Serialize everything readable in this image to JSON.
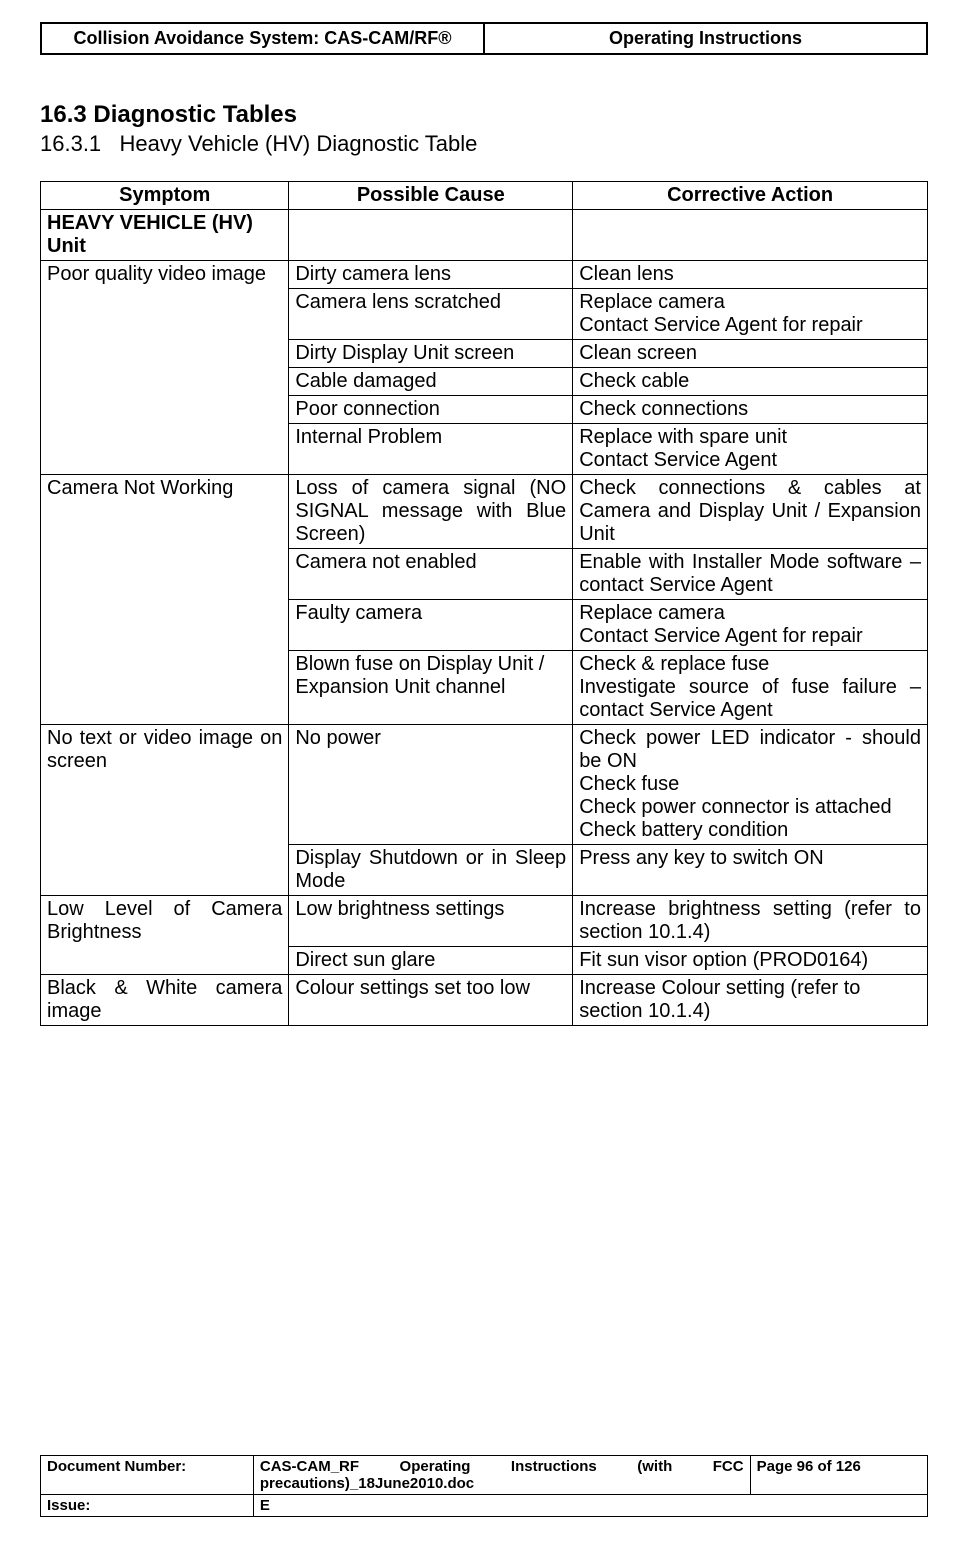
{
  "header": {
    "left": "Collision Avoidance System: CAS-CAM/RF®",
    "right": "Operating Instructions"
  },
  "section": {
    "number": "16.3",
    "title": "Diagnostic Tables",
    "sub_number": "16.3.1",
    "sub_title": "Heavy Vehicle (HV) Diagnostic Table"
  },
  "table": {
    "headers": [
      "Symptom",
      "Possible Cause",
      "Corrective Action"
    ],
    "groups": [
      {
        "symptom": "HEAVY VEHICLE (HV) Unit",
        "symptom_bold": true,
        "rows": [
          {
            "cause": "",
            "action": ""
          }
        ]
      },
      {
        "symptom": "Poor quality video image",
        "rows": [
          {
            "cause": "Dirty camera lens",
            "action": "Clean lens"
          },
          {
            "cause": "Camera lens scratched",
            "action": "Replace camera\nContact Service Agent for repair"
          },
          {
            "cause": "Dirty Display Unit screen",
            "action": "Clean screen"
          },
          {
            "cause": "Cable damaged",
            "action": "Check cable"
          },
          {
            "cause": "Poor connection",
            "action": "Check connections"
          },
          {
            "cause": "Internal Problem",
            "action": "Replace with spare unit\nContact Service Agent"
          }
        ]
      },
      {
        "symptom": "Camera Not Working",
        "rows": [
          {
            "cause": "Loss of camera signal (NO SIGNAL message with Blue Screen)",
            "cause_justify": true,
            "action": "Check connections & cables at Camera and Display Unit / Expansion Unit",
            "action_justify": true
          },
          {
            "cause": "Camera not enabled",
            "action": "Enable with Installer Mode software – contact Service Agent",
            "action_justify": true
          },
          {
            "cause": "Faulty camera",
            "action": "Replace camera\nContact Service Agent for repair"
          },
          {
            "cause": "Blown fuse on Display Unit / Expansion Unit channel",
            "action": "Check & replace fuse\nInvestigate source of fuse failure – contact Service Agent",
            "action_justify": true
          }
        ]
      },
      {
        "symptom": "No text or video image on screen",
        "symptom_justify": true,
        "rows": [
          {
            "cause": "No power",
            "action": "Check power LED indicator - should be ON\nCheck fuse\nCheck power connector is attached\nCheck battery condition",
            "action_justify": true
          },
          {
            "cause": "Display Shutdown or in Sleep Mode",
            "cause_justify": true,
            "action": "Press any key to switch ON"
          }
        ]
      },
      {
        "symptom": "Low Level of Camera Brightness",
        "symptom_justify": true,
        "rows": [
          {
            "cause": "Low brightness settings",
            "action": "Increase brightness setting (refer to section 10.1.4)",
            "action_justify": true
          },
          {
            "cause": "Direct sun glare",
            "action": "Fit sun visor option (PROD0164)",
            "action_justify": true
          }
        ]
      },
      {
        "symptom": "Black & White camera image",
        "symptom_justify": true,
        "rows": [
          {
            "cause": "Colour settings set too low",
            "action": "Increase Colour setting (refer to section 10.1.4)"
          }
        ]
      }
    ]
  },
  "footer": {
    "doc_number_label": "Document Number:",
    "doc_number_value": "CAS-CAM_RF Operating Instructions (with FCC precautions)_18June2010.doc",
    "page_label": "Page 96 of  126",
    "issue_label": "Issue:",
    "issue_value": "E"
  }
}
